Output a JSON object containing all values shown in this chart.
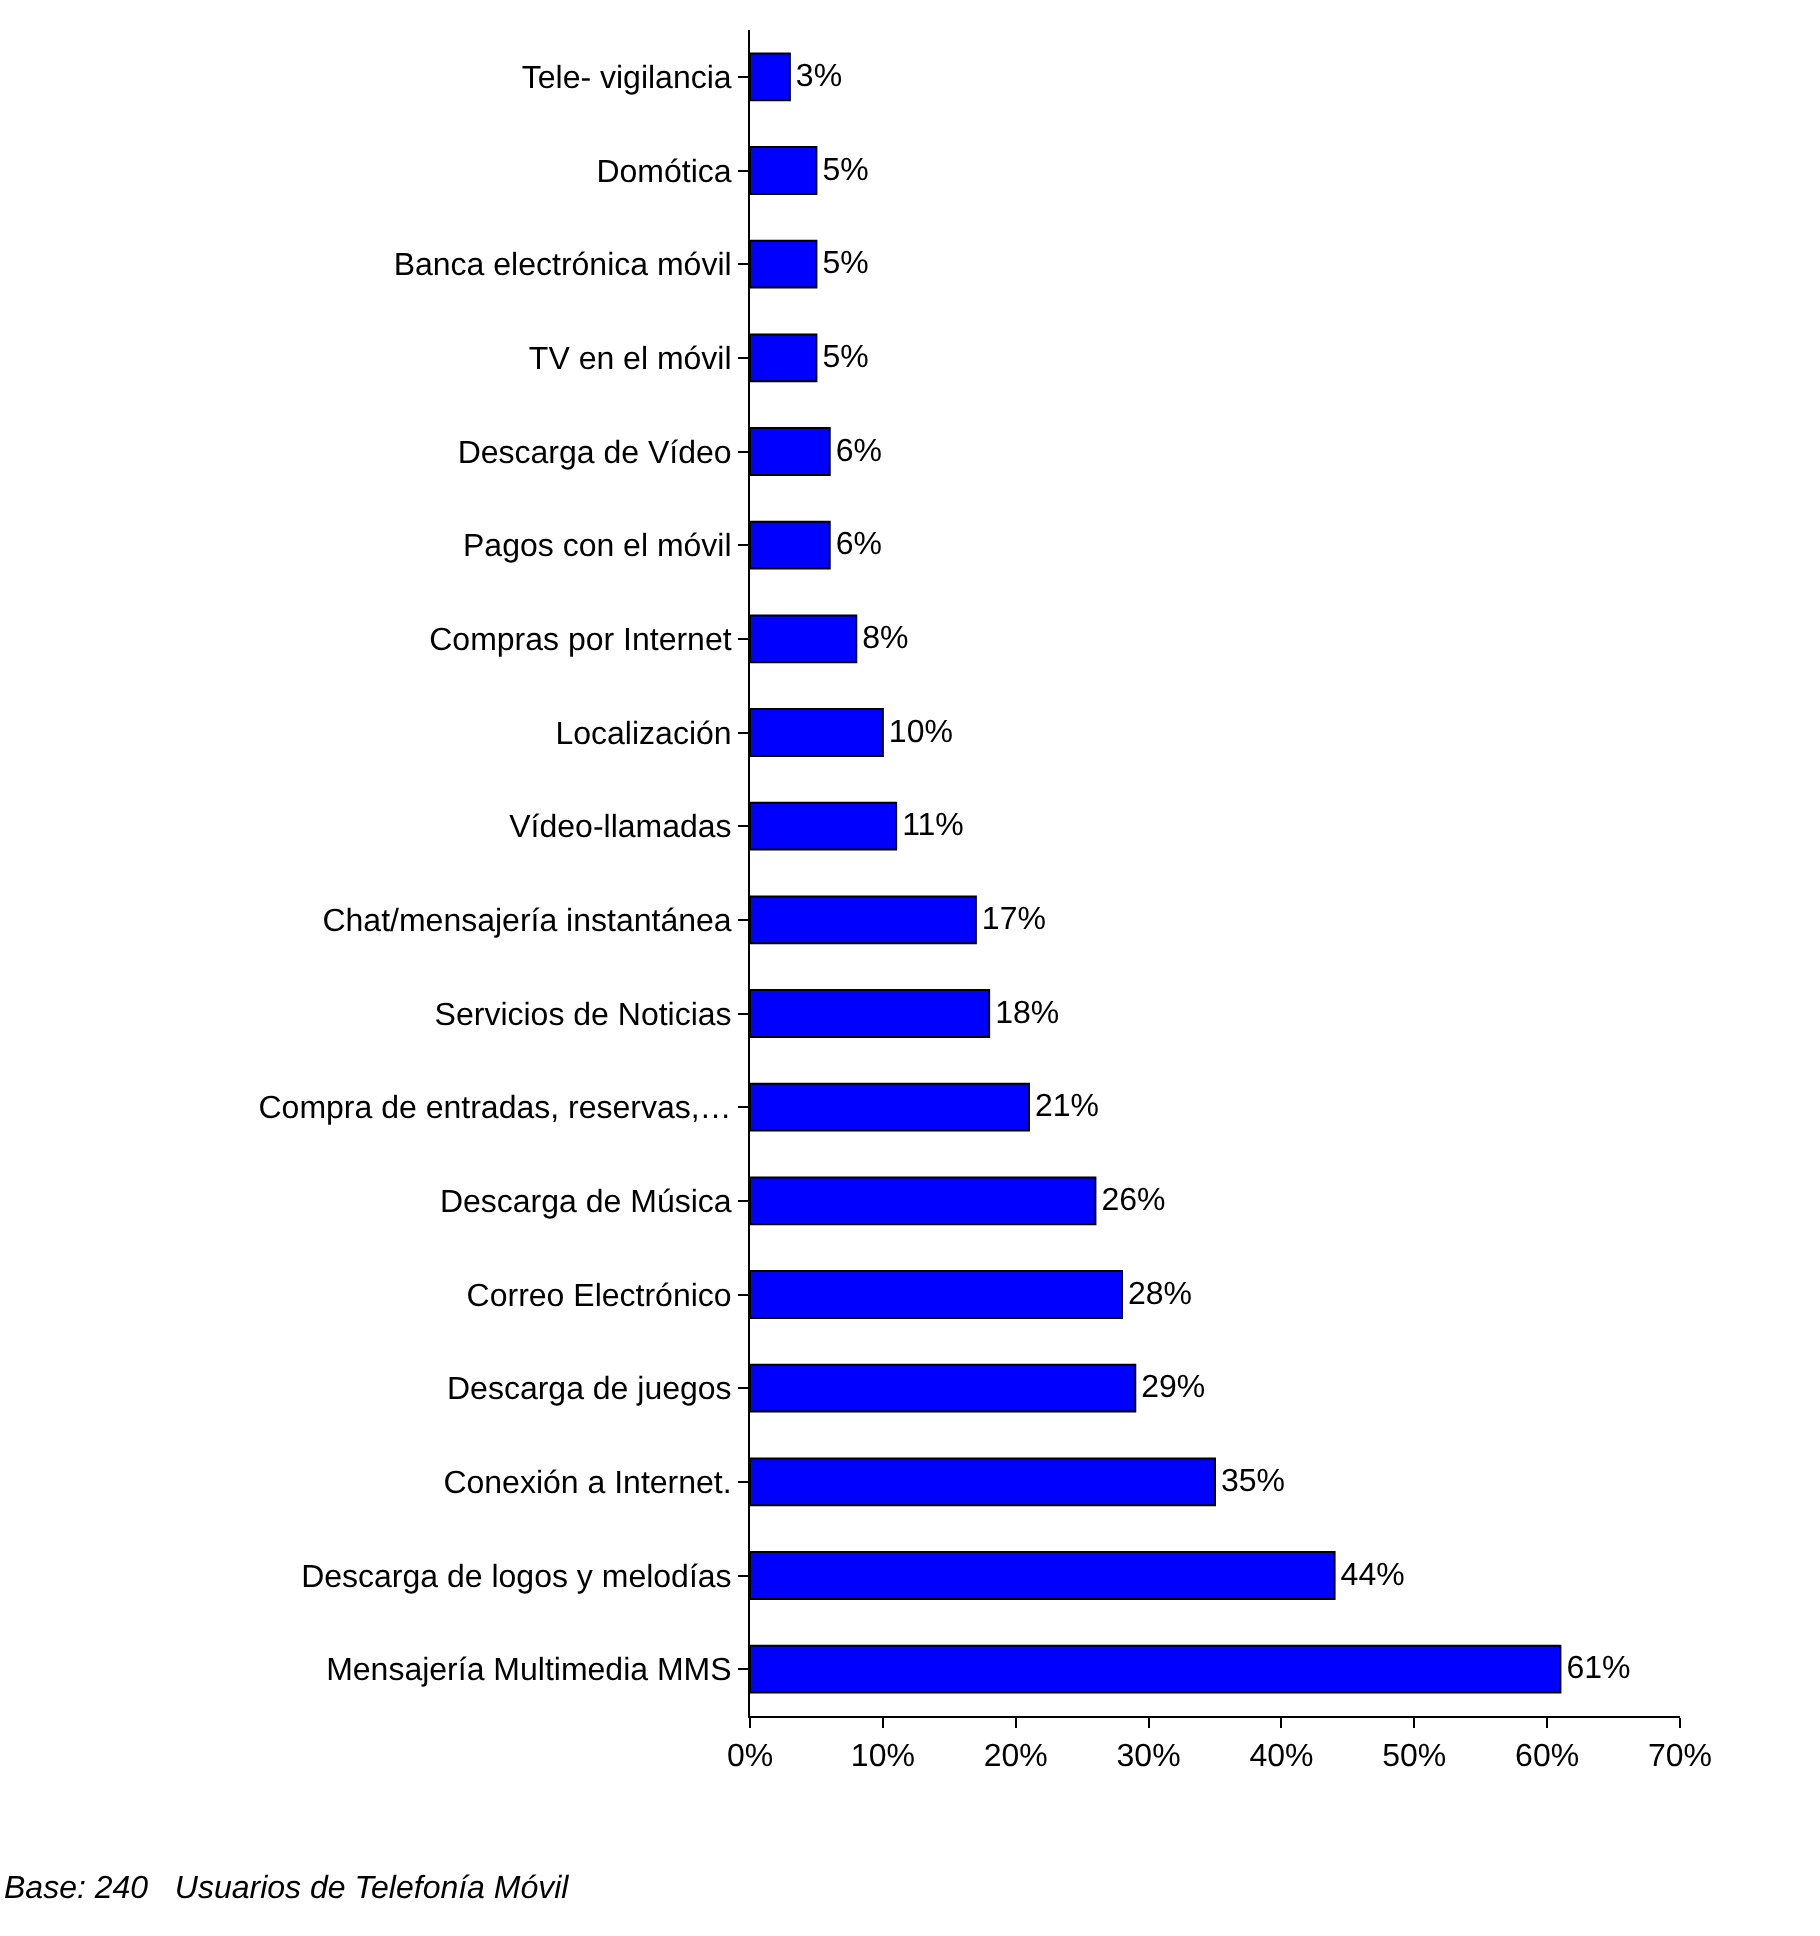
{
  "chart_data": {
    "type": "bar",
    "orientation": "horizontal",
    "categories": [
      "Tele- vigilancia",
      "Domótica",
      "Banca electrónica móvil",
      "TV en el móvil",
      "Descarga de Vídeo",
      "Pagos con el móvil",
      "Compras por Internet",
      "Localización",
      "Vídeo-llamadas",
      "Chat/mensajería instantánea",
      "Servicios de Noticias",
      "Compra de entradas, reservas,…",
      "Descarga de Música",
      "Correo Electrónico",
      "Descarga de juegos",
      "Conexión a Internet.",
      "Descarga de logos y melodías",
      "Mensajería Multimedia MMS"
    ],
    "values": [
      3,
      5,
      5,
      5,
      6,
      6,
      8,
      10,
      11,
      17,
      18,
      21,
      26,
      28,
      29,
      35,
      44,
      61
    ],
    "value_labels": [
      "3%",
      "5%",
      "5%",
      "5%",
      "6%",
      "6%",
      "8%",
      "10%",
      "11%",
      "17%",
      "18%",
      "21%",
      "26%",
      "28%",
      "29%",
      "35%",
      "44%",
      "61%"
    ],
    "color": "#0000ff",
    "xlim": [
      0,
      70
    ],
    "xticks": [
      {
        "value": 0,
        "label": "0%"
      },
      {
        "value": 10,
        "label": "10%"
      },
      {
        "value": 20,
        "label": "20%"
      },
      {
        "value": 30,
        "label": "30%"
      },
      {
        "value": 40,
        "label": "40%"
      },
      {
        "value": 50,
        "label": "50%"
      },
      {
        "value": 60,
        "label": "60%"
      },
      {
        "value": 70,
        "label": "70%"
      }
    ],
    "legend": false,
    "annotations": [
      "Base: 240   Usuarios de Telefonía Móvil"
    ]
  }
}
